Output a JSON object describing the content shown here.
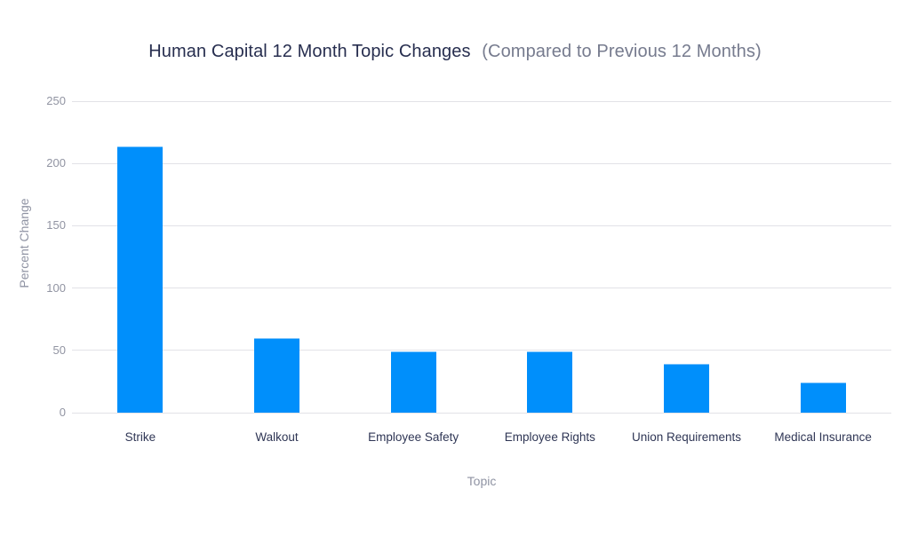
{
  "chart_data": {
    "type": "bar",
    "title": "Human Capital 12 Month Topic Changes",
    "subtitle": "(Compared to Previous 12 Months)",
    "xlabel": "Topic",
    "ylabel": "Percent Change",
    "categories": [
      "Strike",
      "Walkout",
      "Employee Safety",
      "Employee Rights",
      "Union Requirements",
      "Medical Insurance"
    ],
    "values": [
      214,
      60,
      49,
      49,
      39,
      24
    ],
    "yticks": [
      0,
      50,
      100,
      150,
      200,
      250
    ],
    "ylim": [
      0,
      250
    ],
    "grid": true,
    "legend": "none"
  },
  "colors": {
    "bar": "#008FFB",
    "bar_edge": "#7cc3fb",
    "gridline": "#e2e2e7",
    "title": "#272e4f",
    "subtitle": "#767b8e",
    "tick_label": "#9194a2",
    "category_label": "#2f3655",
    "axis_title": "#8f93a3",
    "background": "#ffffff"
  }
}
